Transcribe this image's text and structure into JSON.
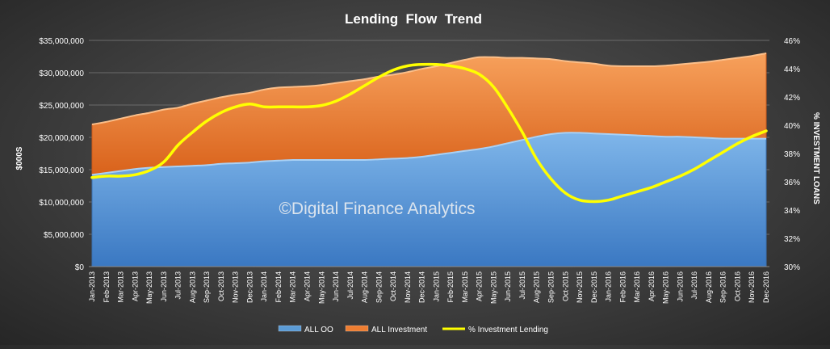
{
  "chart_data": {
    "type": "area",
    "title": "Lending  Flow  Trend",
    "ylabel": "$000S",
    "y2label": "% INVESTMENT LOANS",
    "watermark": "©Digital Finance Analytics",
    "ylim": [
      0,
      35000000
    ],
    "y2lim": [
      30,
      46
    ],
    "yticks": [
      "$0",
      "$5,000,000",
      "$10,000,000",
      "$15,000,000",
      "$20,000,000",
      "$25,000,000",
      "$30,000,000",
      "$35,000,000"
    ],
    "y2ticks": [
      "30%",
      "32%",
      "34%",
      "36%",
      "38%",
      "40%",
      "42%",
      "44%",
      "46%"
    ],
    "categories": [
      "Jan-2013",
      "Feb-2013",
      "Mar-2013",
      "Apr-2013",
      "May-2013",
      "Jun-2013",
      "Jul-2013",
      "Aug-2013",
      "Sep-2013",
      "Oct-2013",
      "Nov-2013",
      "Dec-2013",
      "Jan-2014",
      "Feb-2014",
      "Mar-2014",
      "Apr-2014",
      "May-2014",
      "Jun-2014",
      "Jul-2014",
      "Aug-2014",
      "Sep-2014",
      "Oct-2014",
      "Nov-2014",
      "Dec-2014",
      "Jan-2015",
      "Feb-2015",
      "Mar-2015",
      "Apr-2015",
      "May-2015",
      "Jun-2015",
      "Jul-2015",
      "Aug-2015",
      "Sep-2015",
      "Oct-2015",
      "Nov-2015",
      "Dec-2015",
      "Jan-2016",
      "Feb-2016",
      "Mar-2016",
      "Apr-2016",
      "May-2016",
      "Jun-2016",
      "Jul-2016",
      "Aug-2016",
      "Sep-2016",
      "Oct-2016",
      "Nov-2016",
      "Dec-2016"
    ],
    "series": [
      {
        "name": "ALL OO",
        "axis": "left",
        "kind": "stacked-area",
        "color": "#5b9bd5",
        "values": [
          14200000,
          14500000,
          14800000,
          15100000,
          15300000,
          15400000,
          15500000,
          15600000,
          15700000,
          15900000,
          16000000,
          16100000,
          16300000,
          16400000,
          16500000,
          16500000,
          16500000,
          16500000,
          16500000,
          16500000,
          16600000,
          16700000,
          16800000,
          17000000,
          17300000,
          17600000,
          17900000,
          18200000,
          18600000,
          19100000,
          19600000,
          20100000,
          20500000,
          20700000,
          20700000,
          20600000,
          20500000,
          20400000,
          20300000,
          20200000,
          20100000,
          20100000,
          20000000,
          19900000,
          19800000,
          19800000,
          19800000,
          19800000
        ]
      },
      {
        "name": "ALL Investment",
        "axis": "left",
        "kind": "stacked-area",
        "color": "#ed7d31",
        "values": [
          7800000,
          7900000,
          8100000,
          8300000,
          8500000,
          8900000,
          9100000,
          9600000,
          10000000,
          10300000,
          10600000,
          10800000,
          11100000,
          11300000,
          11300000,
          11400000,
          11600000,
          11900000,
          12200000,
          12500000,
          12800000,
          13000000,
          13300000,
          13600000,
          13700000,
          13900000,
          14100000,
          14200000,
          13800000,
          13200000,
          12700000,
          12100000,
          11600000,
          11100000,
          10900000,
          10800000,
          10600000,
          10600000,
          10700000,
          10800000,
          11000000,
          11200000,
          11500000,
          11800000,
          12200000,
          12500000,
          12800000,
          13200000
        ]
      },
      {
        "name": "% Investment Lending",
        "axis": "right",
        "kind": "line",
        "color": "#ffff00",
        "values": [
          36.3,
          36.4,
          36.4,
          36.5,
          36.8,
          37.4,
          38.6,
          39.5,
          40.3,
          40.9,
          41.3,
          41.5,
          41.3,
          41.3,
          41.3,
          41.3,
          41.4,
          41.7,
          42.2,
          42.8,
          43.4,
          43.9,
          44.2,
          44.3,
          44.3,
          44.2,
          44.0,
          43.6,
          42.7,
          41.2,
          39.5,
          37.6,
          36.2,
          35.2,
          34.7,
          34.6,
          34.7,
          35.0,
          35.3,
          35.6,
          36.0,
          36.4,
          36.9,
          37.5,
          38.1,
          38.7,
          39.2,
          39.6
        ]
      }
    ],
    "legend": {
      "position": "bottom",
      "items": [
        {
          "label": "ALL OO",
          "color": "#5b9bd5",
          "kind": "area"
        },
        {
          "label": "ALL Investment",
          "color": "#ed7d31",
          "kind": "area"
        },
        {
          "label": "% Investment Lending",
          "color": "#ffff00",
          "kind": "line"
        }
      ]
    },
    "grid": true
  }
}
